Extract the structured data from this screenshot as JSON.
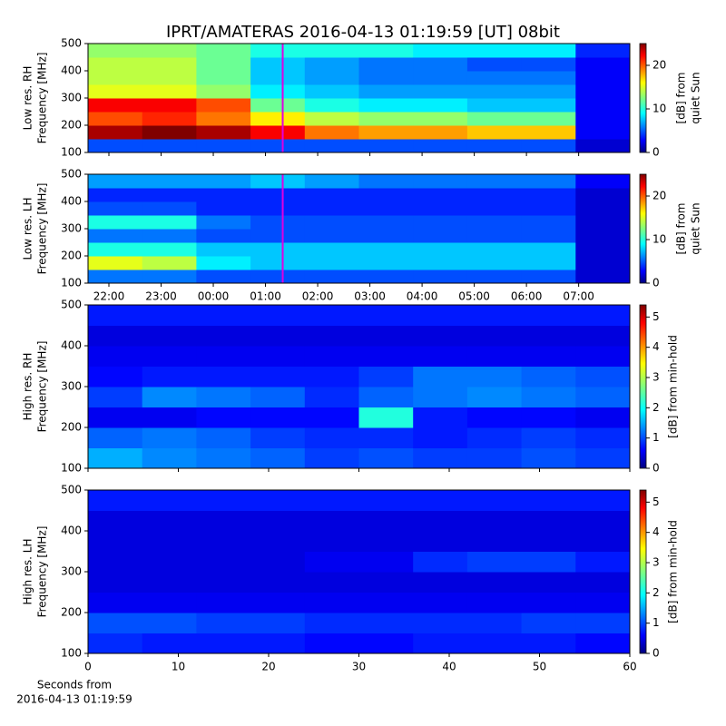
{
  "chart_data": [
    {
      "type": "heatmap",
      "title": "IPRT/AMATERAS 2016-04-13 01:19:59 [UT]   08bit",
      "ylabel": [
        "Low res. RH",
        "Frequency [MHz]"
      ],
      "xlim": [
        21.6,
        31.98
      ],
      "xticks": [
        {
          "value": 22,
          "label": "22:00"
        },
        {
          "value": 23,
          "label": "23:00"
        },
        {
          "value": 24,
          "label": "00:00"
        },
        {
          "value": 25,
          "label": "01:00"
        },
        {
          "value": 26,
          "label": "02:00"
        },
        {
          "value": 27,
          "label": "03:00"
        },
        {
          "value": 28,
          "label": "04:00"
        },
        {
          "value": 29,
          "label": "05:00"
        },
        {
          "value": 30,
          "label": "06:00"
        },
        {
          "value": 31,
          "label": "07:00"
        }
      ],
      "show_xtick_labels": false,
      "ylim": [
        100,
        500
      ],
      "yticks": [
        100,
        200,
        300,
        400,
        500
      ],
      "clim": [
        0,
        25
      ],
      "cticks": [
        0,
        10,
        20
      ],
      "clabel": [
        "[dB] from",
        "quiet Sun"
      ],
      "marker_x": 25.33,
      "marker_color": "#e000e0",
      "z": [
        [
          5,
          5,
          5,
          5,
          5,
          5,
          5,
          5,
          5,
          2
        ],
        [
          24,
          25,
          24,
          22,
          19,
          18,
          18,
          17,
          17,
          3
        ],
        [
          20,
          21,
          19,
          16,
          14,
          13,
          13,
          12,
          12,
          3
        ],
        [
          22,
          22,
          20,
          12,
          10,
          9,
          9,
          8,
          8,
          3
        ],
        [
          15,
          15,
          13,
          9,
          8,
          7,
          7,
          7,
          7,
          3
        ],
        [
          14,
          14,
          12,
          8,
          7,
          6,
          6,
          6,
          6,
          3
        ],
        [
          14,
          14,
          12,
          8,
          7,
          6,
          6,
          5,
          5,
          3
        ],
        [
          13,
          13,
          12,
          10,
          10,
          10,
          9,
          9,
          9,
          4
        ]
      ]
    },
    {
      "type": "heatmap",
      "ylabel": [
        "Low res. LH",
        "Frequency [MHz]"
      ],
      "xlim": [
        21.6,
        31.98
      ],
      "xticks": [
        {
          "value": 22,
          "label": "22:00"
        },
        {
          "value": 23,
          "label": "23:00"
        },
        {
          "value": 24,
          "label": "00:00"
        },
        {
          "value": 25,
          "label": "01:00"
        },
        {
          "value": 26,
          "label": "02:00"
        },
        {
          "value": 27,
          "label": "03:00"
        },
        {
          "value": 28,
          "label": "04:00"
        },
        {
          "value": 29,
          "label": "05:00"
        },
        {
          "value": 30,
          "label": "06:00"
        },
        {
          "value": 31,
          "label": "07:00"
        }
      ],
      "show_xtick_labels": true,
      "ylim": [
        100,
        500
      ],
      "yticks": [
        100,
        200,
        300,
        400,
        500
      ],
      "clim": [
        0,
        25
      ],
      "cticks": [
        0,
        10,
        20
      ],
      "clabel": [
        "[dB] from",
        "quiet Sun"
      ],
      "marker_x": 25.33,
      "marker_color": "#e000e0",
      "z": [
        [
          6,
          6,
          5,
          5,
          5,
          5,
          5,
          5,
          5,
          2
        ],
        [
          15,
          14,
          9,
          8,
          8,
          8,
          8,
          8,
          8,
          2
        ],
        [
          10,
          10,
          8,
          8,
          8,
          8,
          8,
          8,
          8,
          2
        ],
        [
          6,
          6,
          5,
          5,
          5,
          5,
          5,
          5,
          5,
          2
        ],
        [
          10,
          10,
          6,
          5,
          5,
          5,
          5,
          5,
          5,
          2
        ],
        [
          5,
          5,
          4,
          4,
          4,
          4,
          4,
          4,
          4,
          2
        ],
        [
          4,
          4,
          4,
          4,
          4,
          4,
          4,
          4,
          4,
          2
        ],
        [
          7,
          7,
          7,
          8,
          7,
          6,
          6,
          6,
          6,
          3
        ]
      ]
    },
    {
      "type": "heatmap",
      "ylabel": [
        "High res. RH",
        "Frequency [MHz]"
      ],
      "xlim": [
        0,
        60
      ],
      "xticks": [
        0,
        10,
        20,
        30,
        40,
        50,
        60
      ],
      "show_xtick_labels": false,
      "ylim": [
        100,
        500
      ],
      "yticks": [
        100,
        200,
        300,
        400,
        500
      ],
      "clim": [
        0,
        5.4
      ],
      "cticks": [
        0,
        1,
        2,
        3,
        4,
        5
      ],
      "clabel": [
        "[dB] from min-hold"
      ],
      "z": [
        [
          1.6,
          1.4,
          1.3,
          1.2,
          1.0,
          1.1,
          1.0,
          1.0,
          1.1,
          1.0
        ],
        [
          1.2,
          1.3,
          1.2,
          1.0,
          0.9,
          0.9,
          0.8,
          0.9,
          1.0,
          0.9
        ],
        [
          0.6,
          0.6,
          0.7,
          0.7,
          0.7,
          2.2,
          0.8,
          0.7,
          0.7,
          0.6
        ],
        [
          1.0,
          1.4,
          1.3,
          1.2,
          0.9,
          1.2,
          1.3,
          1.4,
          1.3,
          1.2
        ],
        [
          0.7,
          0.8,
          0.8,
          0.8,
          0.8,
          1.0,
          1.3,
          1.3,
          1.2,
          1.1
        ],
        [
          0.6,
          0.6,
          0.6,
          0.6,
          0.6,
          0.6,
          0.6,
          0.6,
          0.6,
          0.6
        ],
        [
          0.5,
          0.5,
          0.5,
          0.5,
          0.5,
          0.5,
          0.5,
          0.5,
          0.5,
          0.5
        ],
        [
          0.8,
          0.8,
          0.8,
          0.8,
          0.8,
          0.8,
          0.8,
          0.8,
          0.8,
          0.8
        ]
      ]
    },
    {
      "type": "heatmap",
      "ylabel": [
        "High res. LH",
        "Frequency [MHz]"
      ],
      "xlabel": [
        "Seconds from",
        "2016-04-13 01:19:59"
      ],
      "xlim": [
        0,
        60
      ],
      "xticks": [
        0,
        10,
        20,
        30,
        40,
        50,
        60
      ],
      "show_xtick_labels": true,
      "ylim": [
        100,
        500
      ],
      "yticks": [
        100,
        200,
        300,
        400,
        500
      ],
      "clim": [
        0,
        5.4
      ],
      "cticks": [
        0,
        1,
        2,
        3,
        4,
        5
      ],
      "clabel": [
        "[dB] from min-hold"
      ],
      "z": [
        [
          0.9,
          0.8,
          0.8,
          0.8,
          0.7,
          0.7,
          0.8,
          0.8,
          0.8,
          0.7
        ],
        [
          1.1,
          1.1,
          1.0,
          1.0,
          0.9,
          0.9,
          0.9,
          0.9,
          1.0,
          1.0
        ],
        [
          0.6,
          0.6,
          0.6,
          0.6,
          0.6,
          0.6,
          0.6,
          0.6,
          0.6,
          0.6
        ],
        [
          0.5,
          0.5,
          0.5,
          0.5,
          0.5,
          0.5,
          0.5,
          0.5,
          0.5,
          0.5
        ],
        [
          0.5,
          0.5,
          0.5,
          0.5,
          0.6,
          0.6,
          0.9,
          1.0,
          1.0,
          0.8
        ],
        [
          0.5,
          0.5,
          0.5,
          0.5,
          0.5,
          0.5,
          0.5,
          0.5,
          0.5,
          0.5
        ],
        [
          0.5,
          0.5,
          0.5,
          0.5,
          0.5,
          0.5,
          0.5,
          0.5,
          0.5,
          0.5
        ],
        [
          0.8,
          0.8,
          0.8,
          0.8,
          0.8,
          0.8,
          0.8,
          0.8,
          0.8,
          0.8
        ]
      ]
    }
  ]
}
